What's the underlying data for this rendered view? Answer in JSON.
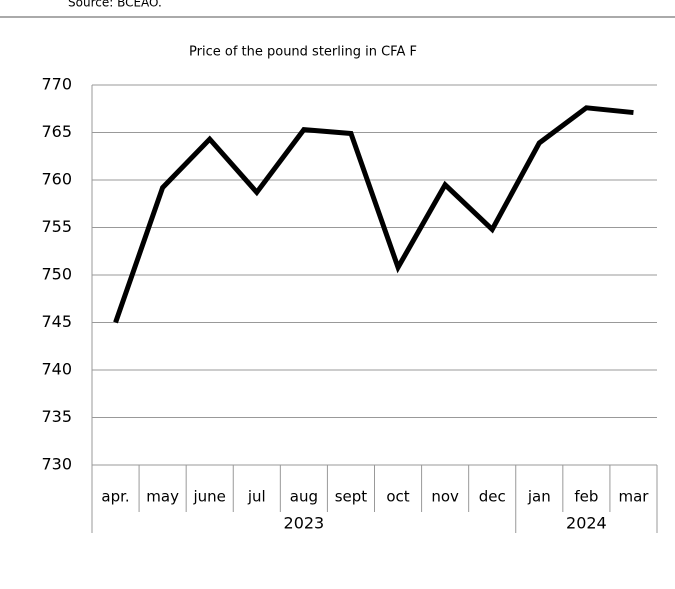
{
  "source": "Source: BCEAO.",
  "chart_data": {
    "type": "line",
    "title": "Price of the pound sterling in CFA F",
    "categories": [
      "apr.",
      "may",
      "june",
      "jul",
      "aug",
      "sept",
      "oct",
      "nov",
      "dec",
      "jan",
      "feb",
      "mar"
    ],
    "category_groups": [
      {
        "label": "2023",
        "size": 9
      },
      {
        "label": "2024",
        "size": 3
      }
    ],
    "series": [
      {
        "name": "Price",
        "color": "#000000",
        "values": [
          745.0,
          759.2,
          764.3,
          758.7,
          765.3,
          764.9,
          750.8,
          759.5,
          754.8,
          763.9,
          767.6,
          767.1
        ]
      }
    ],
    "ylim": [
      730,
      770
    ],
    "yticks": [
      730,
      735,
      740,
      745,
      750,
      755,
      760,
      765,
      770
    ],
    "grid": true
  }
}
